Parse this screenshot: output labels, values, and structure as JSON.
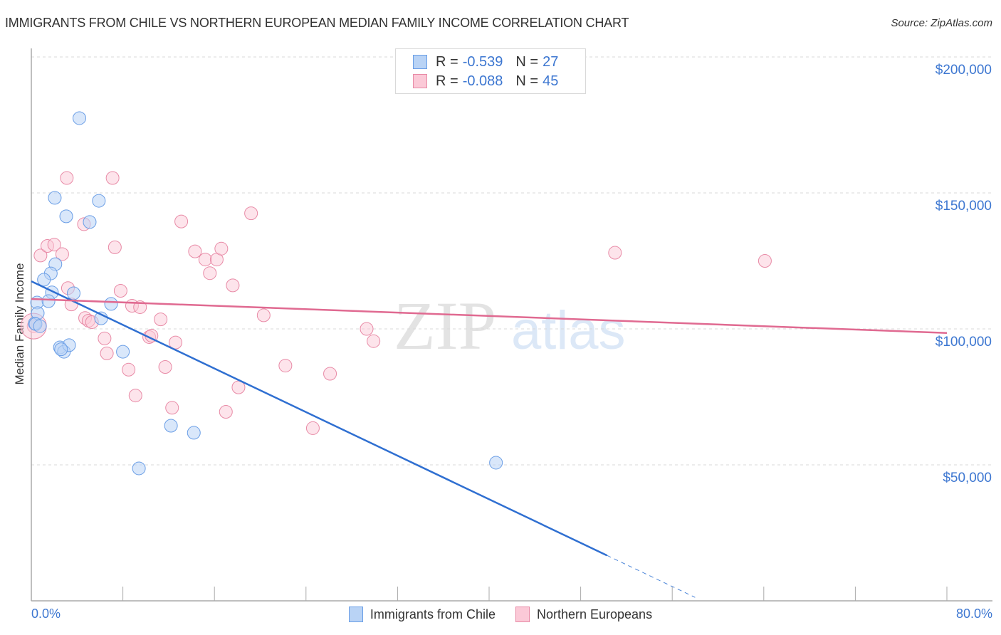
{
  "header": {
    "title": "IMMIGRANTS FROM CHILE VS NORTHERN EUROPEAN MEDIAN FAMILY INCOME CORRELATION CHART",
    "source": "Source: ZipAtlas.com"
  },
  "watermark": {
    "zip": "ZIP",
    "atlas": "atlas"
  },
  "stats": [
    {
      "series": "Immigrants from Chile",
      "r_label": "R =",
      "r_value": "-0.539",
      "n_label": "N =",
      "n_value": "27",
      "color": "#6a9ee6",
      "fill": "#b9d3f5"
    },
    {
      "series": "Northern Europeans",
      "r_label": "R =",
      "r_value": "-0.088",
      "n_label": "N =",
      "n_value": "45",
      "color": "#e88aa6",
      "fill": "#fbc9d7"
    }
  ],
  "axes": {
    "ylabel": "Median Family Income",
    "x_min_label": "0.0%",
    "x_max_label": "80.0%",
    "y_ticks": [
      "$200,000",
      "$150,000",
      "$100,000",
      "$50,000"
    ]
  },
  "legend": [
    {
      "label": "Immigrants from Chile",
      "color": "#6a9ee6",
      "fill": "#b9d3f5"
    },
    {
      "label": "Northern Europeans",
      "color": "#e88aa6",
      "fill": "#fbc9d7"
    }
  ],
  "chart_data": {
    "type": "scatter",
    "title": "IMMIGRANTS FROM CHILE VS NORTHERN EUROPEAN MEDIAN FAMILY INCOME CORRELATION CHART",
    "xlabel": "",
    "ylabel": "Median Family Income",
    "xlim": [
      0,
      80
    ],
    "ylim": [
      0,
      210000
    ],
    "x_ticks": [
      "0.0%",
      "80.0%"
    ],
    "y_ticks": [
      50000,
      100000,
      150000,
      200000
    ],
    "grid": true,
    "legend_position": "bottom",
    "series": [
      {
        "name": "Immigrants from Chile",
        "color": "#3d77d1",
        "r": -0.539,
        "n": 27,
        "points": [
          [
            0.3,
            102000
          ],
          [
            0.5,
            109700
          ],
          [
            0.56,
            105800
          ],
          [
            0.37,
            101800
          ],
          [
            0.75,
            101000
          ],
          [
            4.2,
            177500
          ],
          [
            2.05,
            148200
          ],
          [
            3.05,
            141400
          ],
          [
            5.1,
            139300
          ],
          [
            5.9,
            147100
          ],
          [
            2.1,
            123800
          ],
          [
            1.7,
            120400
          ],
          [
            1.1,
            118100
          ],
          [
            1.8,
            113400
          ],
          [
            1.5,
            110200
          ],
          [
            3.7,
            113100
          ],
          [
            6.97,
            109200
          ],
          [
            6.1,
            103900
          ],
          [
            2.5,
            93200
          ],
          [
            2.85,
            91600
          ],
          [
            3.3,
            94000
          ],
          [
            8.0,
            91600
          ],
          [
            12.2,
            64400
          ],
          [
            14.2,
            61800
          ],
          [
            9.4,
            48700
          ],
          [
            40.6,
            50800
          ],
          [
            2.6,
            92500
          ]
        ],
        "trendline": {
          "x": [
            0,
            50.3
          ],
          "y": [
            117500,
            16700
          ],
          "dashed_extension_to_x": 58
        }
      },
      {
        "name": "Northern Europeans",
        "color": "#e07096",
        "r": -0.088,
        "n": 45,
        "points": [
          [
            0.2,
            101000
          ],
          [
            0.8,
            127000
          ],
          [
            1.4,
            130500
          ],
          [
            2.0,
            131000
          ],
          [
            2.7,
            127500
          ],
          [
            3.2,
            115000
          ],
          [
            3.5,
            109000
          ],
          [
            4.6,
            138500
          ],
          [
            4.7,
            104000
          ],
          [
            5.0,
            103000
          ],
          [
            5.3,
            102500
          ],
          [
            3.1,
            155500
          ],
          [
            6.4,
            96500
          ],
          [
            6.6,
            91000
          ],
          [
            7.1,
            155500
          ],
          [
            7.3,
            130000
          ],
          [
            7.8,
            114000
          ],
          [
            8.5,
            85000
          ],
          [
            8.8,
            108500
          ],
          [
            9.5,
            108000
          ],
          [
            9.1,
            75500
          ],
          [
            10.3,
            97000
          ],
          [
            10.5,
            97500
          ],
          [
            11.3,
            103500
          ],
          [
            11.7,
            86000
          ],
          [
            12.3,
            71000
          ],
          [
            12.6,
            95000
          ],
          [
            13.1,
            139500
          ],
          [
            14.3,
            128500
          ],
          [
            15.2,
            125500
          ],
          [
            15.6,
            120500
          ],
          [
            16.2,
            125500
          ],
          [
            16.6,
            129500
          ],
          [
            17.6,
            116000
          ],
          [
            17.0,
            69500
          ],
          [
            18.1,
            78500
          ],
          [
            19.2,
            142500
          ],
          [
            20.3,
            105000
          ],
          [
            22.2,
            86500
          ],
          [
            24.6,
            63500
          ],
          [
            26.1,
            83500
          ],
          [
            29.3,
            100000
          ],
          [
            29.9,
            95500
          ],
          [
            51.0,
            128000
          ],
          [
            64.1,
            125000
          ]
        ],
        "trendline": {
          "x": [
            0,
            80
          ],
          "y": [
            111000,
            98500
          ]
        }
      }
    ]
  }
}
